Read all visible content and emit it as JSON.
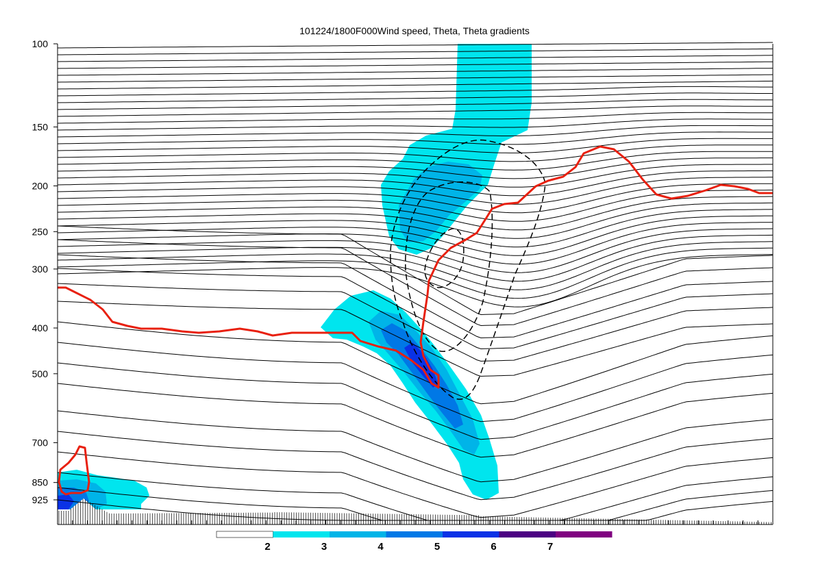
{
  "chart_data": {
    "type": "contour",
    "title": "101224/1800F000Wind speed, Theta, Theta gradients",
    "y_axis": {
      "scale": "log-pressure",
      "inverted": true,
      "ticks": [
        100,
        150,
        200,
        250,
        300,
        400,
        500,
        700,
        850,
        925
      ],
      "ylim": [
        1000,
        100
      ]
    },
    "colorbar": {
      "levels": [
        2,
        3,
        4,
        5,
        6,
        7
      ],
      "tick_labels": [
        "2",
        "3",
        "4",
        "5",
        "6",
        "7"
      ],
      "colors": [
        "#ffffff",
        "#00e5ee",
        "#00b4e8",
        "#0078e6",
        "#0a32e6",
        "#4b0082",
        "#800080"
      ]
    },
    "layers": [
      {
        "name": "Wind speed",
        "style": "filled",
        "palette": "colorbar"
      },
      {
        "name": "Theta",
        "style": "line",
        "color": "#000000"
      },
      {
        "name": "Theta gradients",
        "style": "dashed",
        "color": "#000000"
      },
      {
        "name": "tropopause",
        "style": "thick-line",
        "color": "#e8200f"
      }
    ],
    "grid": false
  }
}
